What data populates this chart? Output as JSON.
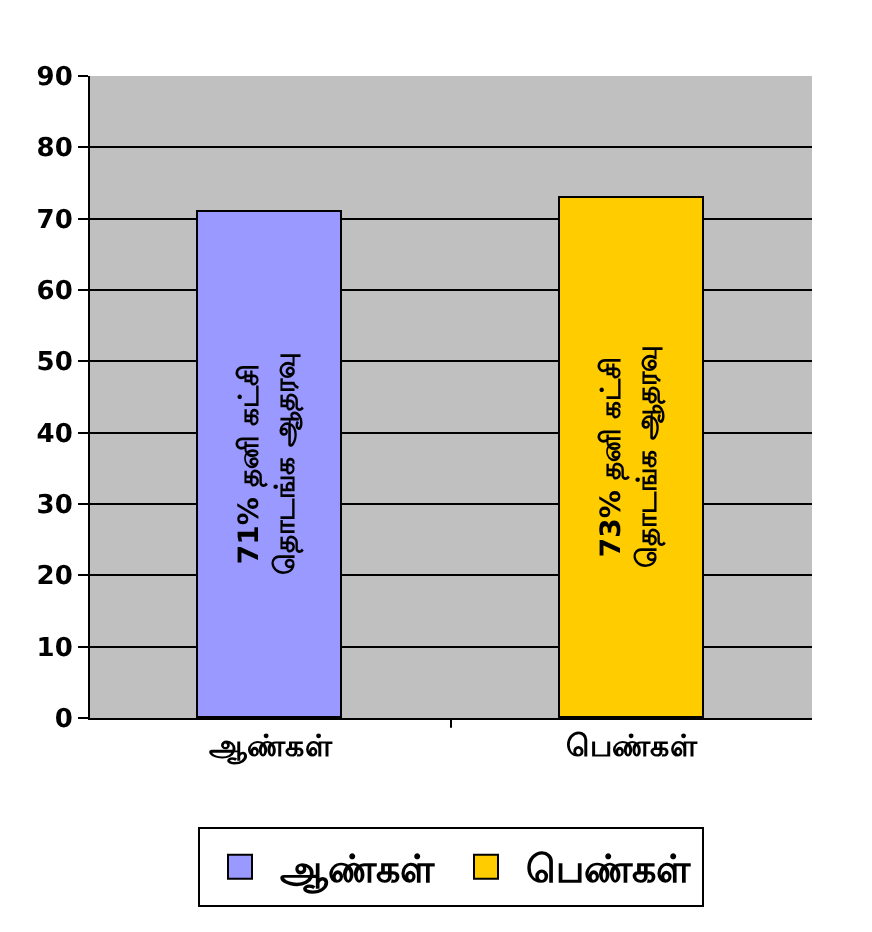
{
  "chart_data": {
    "type": "bar",
    "categories": [
      "ஆண்கள்",
      "பெண்கள்"
    ],
    "series": [
      {
        "name": "ஆண்கள்",
        "color": "#9999ff",
        "values": [
          71,
          null
        ],
        "value_labels": [
          "71% தனி கட்சி\nதொடங்க ஆதரவு",
          null
        ]
      },
      {
        "name": "பெண்கள்",
        "color": "#ffcc00",
        "values": [
          null,
          73
        ],
        "value_labels": [
          null,
          "73% தனி கட்சி\nதொடங்க ஆதரவு"
        ]
      }
    ],
    "ylim": [
      0,
      90
    ],
    "yticks": [
      0,
      10,
      20,
      30,
      40,
      50,
      60,
      70,
      80,
      90
    ],
    "grid": "y",
    "legend": "bottom"
  }
}
